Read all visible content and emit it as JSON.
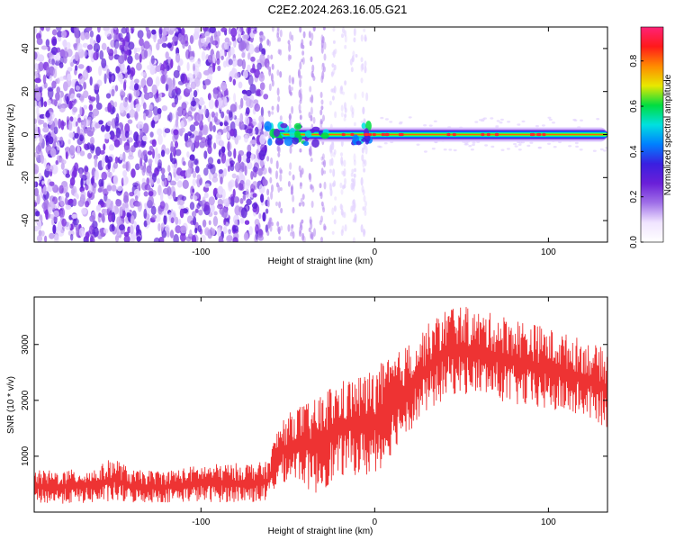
{
  "title": "C2E2.2024.263.16.05.G21",
  "colors": {
    "snr_line": "#ee3333",
    "rainbow": [
      "#ffffff",
      "#f0e4ff",
      "#a070e8",
      "#6a1fd8",
      "#3a1fe0",
      "#0080ff",
      "#00e0e0",
      "#00dd40",
      "#e8e800",
      "#ff8a00",
      "#ff1a1a",
      "#ff2277"
    ]
  },
  "chart_data": [
    {
      "type": "heatmap",
      "name": "spectrogram",
      "xlabel": "Height of straight line (km)",
      "ylabel": "Frequency (Hz)",
      "xlim": [
        -196,
        134
      ],
      "ylim": [
        -50,
        50
      ],
      "xticks": [
        -100,
        0,
        100
      ],
      "xtick_labels": [
        "-100",
        "0",
        "100"
      ],
      "yticks": [
        -40,
        -20,
        0,
        20,
        40
      ],
      "ytick_labels": [
        "-40",
        "-20",
        "0",
        "20",
        "40"
      ],
      "colorbar": {
        "label": "Normalized spectral amplitude",
        "range": [
          0,
          0.95
        ],
        "ticks": [
          0,
          0.2,
          0.4,
          0.6,
          0.8
        ],
        "tick_labels": [
          "0.0",
          "0.2",
          "0.4",
          "0.6",
          "0.8"
        ]
      },
      "regions": [
        {
          "x_range": [
            -196,
            -62
          ],
          "description_value": 0.2,
          "freq_range": [
            -50,
            50
          ]
        },
        {
          "x_range": [
            -62,
            134
          ],
          "line_freq": 0,
          "line_amplitude": 0.85
        }
      ]
    },
    {
      "type": "line",
      "name": "snr",
      "xlabel": "Height of straight line (km)",
      "ylabel": "SNR (10 * v/v)",
      "xlim": [
        -196,
        134
      ],
      "ylim": [
        0,
        3850
      ],
      "xticks": [
        -100,
        0,
        100
      ],
      "xtick_labels": [
        "-100",
        "0",
        "100"
      ],
      "yticks": [
        1000,
        2000,
        3000
      ],
      "ytick_labels": [
        "1000",
        "2000",
        "3000"
      ],
      "envelope": {
        "x": [
          -196,
          -180,
          -160,
          -150,
          -140,
          -120,
          -100,
          -80,
          -62,
          -55,
          -45,
          -35,
          -25,
          -15,
          -5,
          5,
          15,
          25,
          35,
          45,
          60,
          80,
          100,
          120,
          134
        ],
        "low": [
          150,
          150,
          160,
          170,
          160,
          170,
          180,
          170,
          170,
          500,
          600,
          300,
          500,
          700,
          600,
          800,
          1300,
          1600,
          1900,
          2100,
          2100,
          1900,
          1800,
          1700,
          1500
        ],
        "high": [
          750,
          750,
          800,
          1000,
          750,
          750,
          850,
          880,
          900,
          1600,
          1900,
          2000,
          2300,
          2400,
          2500,
          2700,
          2900,
          3200,
          3500,
          3750,
          3600,
          3500,
          3300,
          3100,
          2900
        ]
      }
    }
  ]
}
